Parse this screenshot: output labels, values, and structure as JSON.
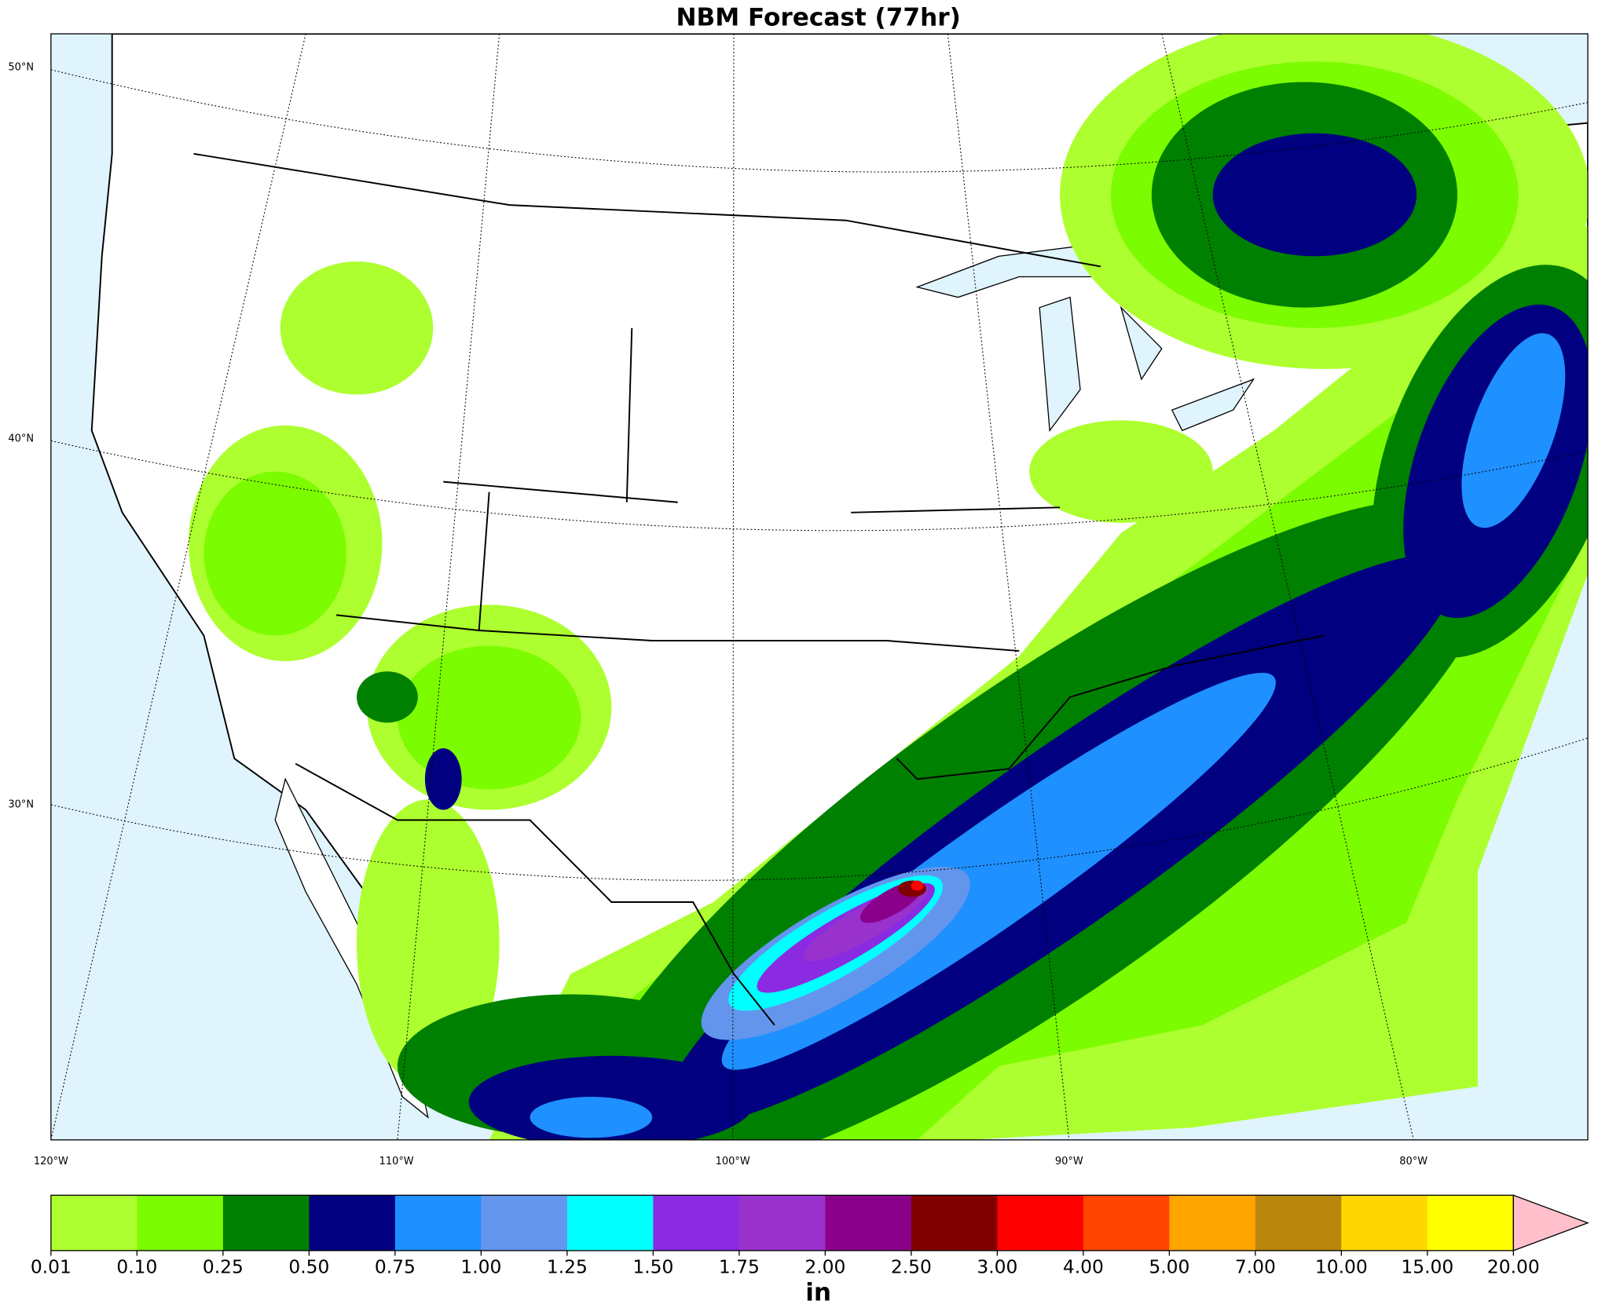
{
  "title": "NBM Forecast (77hr)",
  "latitude_labels": [
    "50°N",
    "40°N",
    "30°N"
  ],
  "longitude_labels": [
    "120°W",
    "110°W",
    "100°W",
    "90°W",
    "80°W"
  ],
  "colorbar": {
    "unit": "in",
    "levels": [
      0.01,
      {
        "value": 0.1,
        "label": "0.10"
      },
      0.25,
      {
        "value": 0.5,
        "label": "0.50"
      },
      0.75,
      {
        "value": 1,
        "label": "1.00"
      },
      1.25,
      {
        "value": 1.5,
        "label": "1.50"
      },
      1.75,
      {
        "value": 2,
        "label": "2.00"
      },
      {
        "value": 2.5,
        "label": "2.50"
      },
      {
        "value": 3,
        "label": "3.00"
      },
      {
        "value": 4,
        "label": "4.00"
      },
      {
        "value": 5,
        "label": "5.00"
      },
      {
        "value": 7,
        "label": "7.00"
      },
      {
        "value": 10,
        "label": "10.00"
      },
      {
        "value": 15,
        "label": "15.00"
      },
      {
        "value": 20,
        "label": "20.00"
      }
    ],
    "colors": [
      "#adff2f",
      "#7cfc00",
      "#008000",
      "#000080",
      "#1e90ff",
      "#6495ed",
      "#00ffff",
      "#8a2be2",
      "#9932cc",
      "#8b008b",
      "#800000",
      "#ff0000",
      "#ff4500",
      "#ffa500",
      "#b8860b",
      "#ffd700",
      "#ffff00"
    ],
    "extend_color": "#ffc0cb"
  }
}
